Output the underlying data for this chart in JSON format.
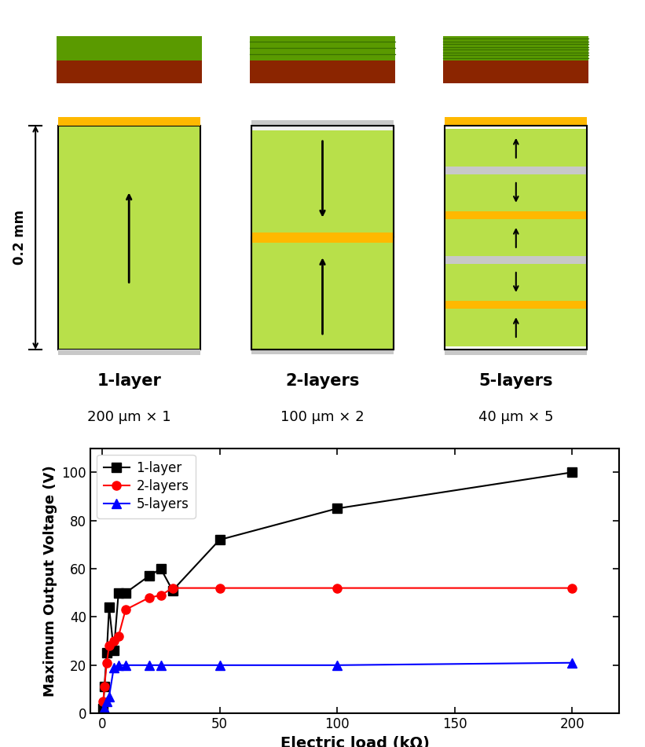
{
  "layer1_x": [
    0.5,
    1,
    2,
    3,
    5,
    7,
    10,
    20,
    25,
    30,
    50,
    100,
    200
  ],
  "layer1_y": [
    2,
    11,
    25,
    44,
    26,
    50,
    50,
    57,
    60,
    51,
    72,
    85,
    100
  ],
  "layer2_x": [
    0.5,
    1,
    2,
    3,
    5,
    7,
    10,
    20,
    25,
    30,
    50,
    100,
    200
  ],
  "layer2_y": [
    5,
    11,
    21,
    28,
    30,
    32,
    43,
    48,
    49,
    52,
    52,
    52,
    52
  ],
  "layer5_x": [
    0.5,
    1,
    2,
    3,
    5,
    7,
    10,
    20,
    25,
    50,
    100,
    200
  ],
  "layer5_y": [
    1,
    2,
    5,
    7,
    19,
    20,
    20,
    20,
    20,
    20,
    20,
    21
  ],
  "xlabel": "Electric load (kΩ)",
  "ylabel": "Maximum Output Voltage (V)",
  "xlim": [
    -5,
    220
  ],
  "ylim": [
    0,
    110
  ],
  "xticks": [
    0,
    50,
    100,
    150,
    200
  ],
  "yticks": [
    0,
    20,
    40,
    60,
    80,
    100
  ],
  "layer1_color": "black",
  "layer2_color": "red",
  "layer5_color": "blue",
  "legend_labels": [
    "1-layer",
    "2-layers",
    "5-layers"
  ],
  "green_light": "#b8e04a",
  "green_dark": "#5a9a00",
  "green_stripe": "#4a8a00",
  "brown": "#8B2500",
  "gold": "#FFB800",
  "silver": "#C8C8C8",
  "silver_dark": "#A0A0A0"
}
